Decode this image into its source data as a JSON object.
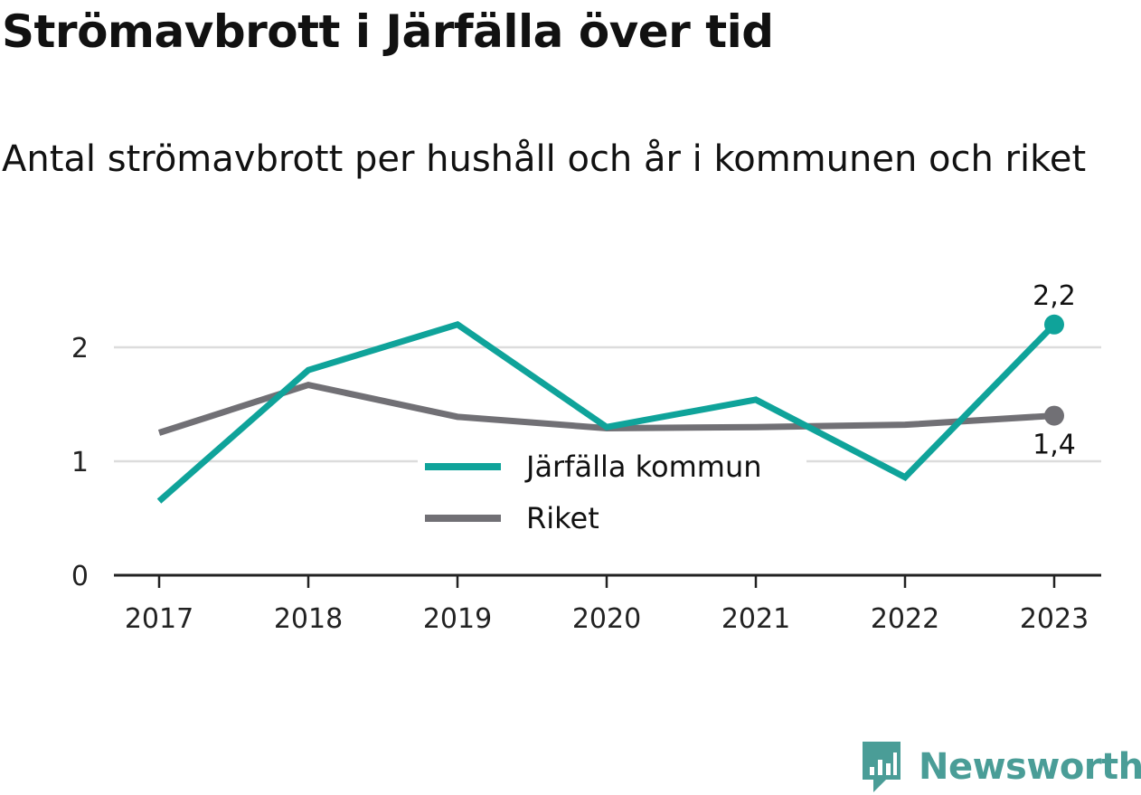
{
  "title": "Strömavbrott i Järfälla över tid",
  "subtitle": "Antal strömavbrott per hushåll och år i kommunen och riket",
  "brand": {
    "name": "Newsworthy",
    "icon": "newsworthy-logo-icon",
    "color": "#4a9d97"
  },
  "chart_data": {
    "type": "line",
    "x": [
      "2017",
      "2018",
      "2019",
      "2020",
      "2021",
      "2022",
      "2023"
    ],
    "yticks": [
      "0",
      "1",
      "2"
    ],
    "ylim": [
      0,
      2.3
    ],
    "grid": true,
    "legend_position": "center",
    "series": [
      {
        "name": "Järfälla kommun",
        "color": "#0fa39a",
        "values": [
          0.65,
          1.8,
          2.2,
          1.3,
          1.54,
          0.86,
          2.2
        ],
        "end_label": "2,2"
      },
      {
        "name": "Riket",
        "color": "#717075",
        "values": [
          1.25,
          1.67,
          1.39,
          1.29,
          1.3,
          1.32,
          1.4
        ],
        "end_label": "1,4"
      }
    ]
  }
}
